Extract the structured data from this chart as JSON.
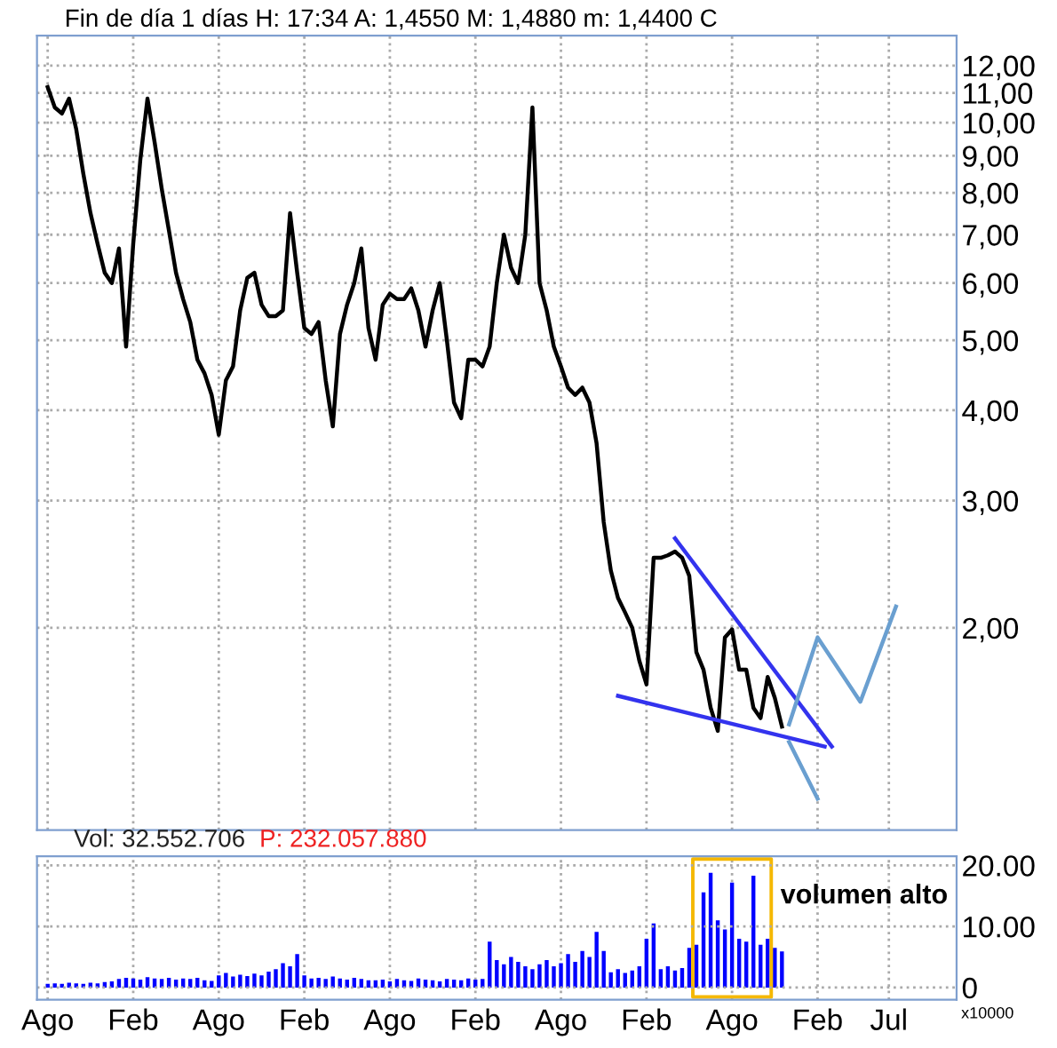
{
  "chart_data": [
    {
      "type": "line",
      "title": "Fin de día 1 días H: 17:34 A: 1,4550 M: 1,4880 m: 1,4400 C",
      "log": "y",
      "grid": true,
      "line_style": "solid",
      "categories": [
        null,
        null,
        null,
        null,
        null,
        null,
        null,
        null,
        null,
        null,
        null,
        null,
        null,
        null,
        null,
        null,
        null,
        null,
        null,
        null,
        null,
        null,
        null,
        null,
        null,
        null,
        null,
        null,
        null,
        null,
        null,
        null,
        null,
        null,
        null,
        null,
        null,
        null,
        null,
        null,
        null,
        null,
        null,
        null,
        null,
        null,
        null,
        null,
        null,
        null,
        null,
        null,
        null,
        null,
        null,
        null,
        null,
        null,
        null,
        null,
        null,
        null,
        null,
        null,
        null,
        null,
        null,
        null,
        null,
        null,
        null,
        null,
        null,
        null,
        null,
        null,
        null,
        null,
        null,
        null,
        null,
        null,
        null,
        null,
        null,
        null,
        null,
        null,
        null,
        null,
        null,
        null,
        null,
        null,
        null,
        null,
        null,
        null,
        null,
        null,
        null,
        null,
        null,
        null,
        null,
        null,
        null,
        null,
        null,
        null,
        null,
        null,
        null,
        null,
        null,
        null,
        null,
        null,
        null,
        null,
        null,
        null,
        null,
        null,
        null,
        null,
        null,
        null
      ],
      "ylim": [
        1.05,
        13.2
      ],
      "yticks": [
        {
          "value": 2,
          "label": "2,00"
        },
        {
          "value": 3,
          "label": "3,00"
        },
        {
          "value": 4,
          "label": "4,00"
        },
        {
          "value": 5,
          "label": "5,00"
        },
        {
          "value": 6,
          "label": "6,00"
        },
        {
          "value": 7,
          "label": "7,00"
        },
        {
          "value": 8,
          "label": "8,00"
        },
        {
          "value": 9,
          "label": "9,00"
        },
        {
          "value": 10,
          "label": "10,00"
        },
        {
          "value": 11,
          "label": "11,00"
        },
        {
          "value": 12,
          "label": "12,00"
        }
      ],
      "series": [
        {
          "color": "#000000",
          "values": [
            11.2,
            10.5,
            10.3,
            10.8,
            9.8,
            8.5,
            7.5,
            6.8,
            6.2,
            6.0,
            6.7,
            4.9,
            6.8,
            8.9,
            10.8,
            9.4,
            8.1,
            7.1,
            6.2,
            5.7,
            5.3,
            4.7,
            4.5,
            4.2,
            3.7,
            4.4,
            4.6,
            5.5,
            6.1,
            6.2,
            5.6,
            5.4,
            5.4,
            5.5,
            7.5,
            6.2,
            5.2,
            5.1,
            5.3,
            4.4,
            3.8,
            5.1,
            5.6,
            6.0,
            6.7,
            5.2,
            4.7,
            5.6,
            5.8,
            5.7,
            5.7,
            5.9,
            5.5,
            4.9,
            5.5,
            6.0,
            5.0,
            4.1,
            3.9,
            4.7,
            4.7,
            4.6,
            4.9,
            6.0,
            7.0,
            6.3,
            6.0,
            7.0,
            10.5,
            6.0,
            5.5,
            4.9,
            4.6,
            4.3,
            4.2,
            4.3,
            4.1,
            3.6,
            2.8,
            2.4,
            2.2,
            2.1,
            2.0,
            1.8,
            1.67,
            2.5,
            2.5,
            2.52,
            2.55,
            2.5,
            2.36,
            1.85,
            1.75,
            1.55,
            1.44,
            1.94,
            1.99,
            1.75,
            1.75,
            1.55,
            1.5,
            1.71,
            1.6,
            1.46,
            null,
            null,
            null,
            null,
            null,
            null,
            null,
            null,
            null,
            null,
            null,
            null,
            null,
            null,
            null,
            null,
            null,
            null,
            null,
            null,
            null,
            null,
            null,
            null
          ]
        },
        {
          "color": "#3333ee",
          "values": [
            null,
            null,
            null,
            null,
            null,
            null,
            null,
            null,
            null,
            null,
            null,
            null,
            null,
            null,
            null,
            null,
            null,
            null,
            null,
            null,
            null,
            null,
            null,
            null,
            null,
            null,
            null,
            null,
            null,
            null,
            null,
            null,
            null,
            null,
            null,
            null,
            null,
            null,
            null,
            null,
            null,
            null,
            null,
            null,
            null,
            null,
            null,
            null,
            null,
            null,
            null,
            null,
            null,
            null,
            null,
            null,
            null,
            null,
            null,
            null,
            null,
            null,
            null,
            null,
            null,
            null,
            null,
            null,
            null,
            null,
            null,
            null,
            null,
            null,
            null,
            null,
            null,
            null,
            null,
            null,
            null,
            null,
            null,
            null,
            null,
            null,
            null,
            null,
            2.66,
            null,
            null,
            null,
            null,
            null,
            null,
            null,
            null,
            null,
            null,
            null,
            null,
            null,
            null,
            null,
            null,
            null,
            null,
            null,
            null,
            null,
            1.37,
            null,
            null,
            null,
            null,
            null,
            null,
            null,
            null,
            null,
            null,
            null,
            null,
            null,
            null,
            null,
            null,
            null
          ]
        },
        {
          "color": "#3333ee",
          "values": [
            null,
            null,
            null,
            null,
            null,
            null,
            null,
            null,
            null,
            null,
            null,
            null,
            null,
            null,
            null,
            null,
            null,
            null,
            null,
            null,
            null,
            null,
            null,
            null,
            null,
            null,
            null,
            null,
            null,
            null,
            null,
            null,
            null,
            null,
            null,
            null,
            null,
            null,
            null,
            null,
            null,
            null,
            null,
            null,
            null,
            null,
            null,
            null,
            null,
            null,
            null,
            null,
            null,
            null,
            null,
            null,
            null,
            null,
            null,
            null,
            null,
            null,
            null,
            null,
            null,
            null,
            null,
            null,
            null,
            null,
            null,
            null,
            null,
            null,
            null,
            null,
            null,
            null,
            null,
            null,
            1.61,
            null,
            null,
            null,
            null,
            null,
            null,
            null,
            null,
            null,
            null,
            null,
            null,
            null,
            null,
            null,
            null,
            null,
            null,
            null,
            null,
            null,
            null,
            null,
            null,
            null,
            null,
            null,
            null,
            1.37,
            null,
            null,
            null,
            null,
            null,
            null,
            null,
            null,
            null,
            null,
            null,
            null,
            null,
            null,
            null,
            null,
            null,
            null
          ]
        },
        {
          "color": "#6a9fd0",
          "values": [
            null,
            null,
            null,
            null,
            null,
            null,
            null,
            null,
            null,
            null,
            null,
            null,
            null,
            null,
            null,
            null,
            null,
            null,
            null,
            null,
            null,
            null,
            null,
            null,
            null,
            null,
            null,
            null,
            null,
            null,
            null,
            null,
            null,
            null,
            null,
            null,
            null,
            null,
            null,
            null,
            null,
            null,
            null,
            null,
            null,
            null,
            null,
            null,
            null,
            null,
            null,
            null,
            null,
            null,
            null,
            null,
            null,
            null,
            null,
            null,
            null,
            null,
            null,
            null,
            null,
            null,
            null,
            null,
            null,
            null,
            null,
            null,
            null,
            null,
            null,
            null,
            null,
            null,
            null,
            null,
            null,
            null,
            null,
            null,
            null,
            null,
            null,
            null,
            null,
            null,
            null,
            null,
            null,
            null,
            null,
            null,
            null,
            null,
            null,
            null,
            null,
            null,
            null,
            null,
            1.47,
            null,
            null,
            null,
            1.94,
            null,
            null,
            null,
            null,
            null,
            1.58,
            null,
            null,
            null,
            null,
            2.14,
            null,
            null,
            null,
            null,
            null,
            null,
            null,
            null
          ]
        },
        {
          "color": "#6a9fd0",
          "values": [
            null,
            null,
            null,
            null,
            null,
            null,
            null,
            null,
            null,
            null,
            null,
            null,
            null,
            null,
            null,
            null,
            null,
            null,
            null,
            null,
            null,
            null,
            null,
            null,
            null,
            null,
            null,
            null,
            null,
            null,
            null,
            null,
            null,
            null,
            null,
            null,
            null,
            null,
            null,
            null,
            null,
            null,
            null,
            null,
            null,
            null,
            null,
            null,
            null,
            null,
            null,
            null,
            null,
            null,
            null,
            null,
            null,
            null,
            null,
            null,
            null,
            null,
            null,
            null,
            null,
            null,
            null,
            null,
            null,
            null,
            null,
            null,
            null,
            null,
            null,
            null,
            null,
            null,
            null,
            null,
            null,
            null,
            null,
            null,
            null,
            null,
            null,
            null,
            null,
            null,
            null,
            null,
            null,
            null,
            null,
            null,
            null,
            null,
            null,
            null,
            null,
            null,
            null,
            null,
            1.39,
            null,
            null,
            null,
            1.16,
            null,
            null,
            null,
            null,
            null,
            null,
            null,
            null,
            null,
            null,
            null,
            null,
            null,
            null,
            null,
            null,
            null,
            null,
            null
          ]
        }
      ]
    },
    {
      "type": "bar",
      "grid": true,
      "color": "#0000ff",
      "annotations": [
        "Vol: 32.552.706",
        "P: 232.057.880",
        "volumen alto",
        "x10000"
      ],
      "categories": [
        "Ago",
        null,
        null,
        null,
        null,
        null,
        null,
        null,
        null,
        null,
        null,
        null,
        "Feb",
        null,
        null,
        null,
        null,
        null,
        null,
        null,
        null,
        null,
        null,
        null,
        "Ago",
        null,
        null,
        null,
        null,
        null,
        null,
        null,
        null,
        null,
        null,
        null,
        "Feb",
        null,
        null,
        null,
        null,
        null,
        null,
        null,
        null,
        null,
        null,
        null,
        "Ago",
        null,
        null,
        null,
        null,
        null,
        null,
        null,
        null,
        null,
        null,
        null,
        "Feb",
        null,
        null,
        null,
        null,
        null,
        null,
        null,
        null,
        null,
        null,
        null,
        "Ago",
        null,
        null,
        null,
        null,
        null,
        null,
        null,
        null,
        null,
        null,
        null,
        "Feb",
        null,
        null,
        null,
        null,
        null,
        null,
        null,
        null,
        null,
        null,
        null,
        "Ago",
        null,
        null,
        null,
        null,
        null,
        null,
        null,
        null,
        null,
        null,
        null,
        "Feb",
        null,
        null,
        null,
        null,
        null,
        null,
        null,
        null,
        null,
        "Jul",
        null,
        null,
        null,
        null,
        null,
        null,
        null,
        null,
        null
      ],
      "ylim": [
        -2,
        21.5
      ],
      "yticks": [
        {
          "value": 0,
          "label": "0"
        },
        {
          "value": 10,
          "label": "10.00"
        },
        {
          "value": 20,
          "label": "20.00"
        }
      ],
      "values": [
        0.6,
        0.7,
        0.6,
        0.8,
        0.7,
        0.6,
        0.8,
        0.7,
        0.9,
        1.0,
        1.4,
        1.6,
        1.5,
        1.3,
        1.7,
        1.5,
        1.4,
        1.6,
        1.3,
        1.5,
        1.4,
        1.6,
        1.2,
        1.1,
        2.0,
        2.4,
        1.8,
        2.1,
        1.9,
        2.3,
        2.0,
        2.6,
        3.0,
        4.0,
        3.5,
        5.5,
        2.0,
        1.5,
        1.6,
        1.4,
        1.8,
        1.5,
        1.3,
        1.6,
        1.4,
        1.2,
        1.2,
        1.3,
        1.0,
        1.4,
        1.2,
        1.1,
        1.5,
        1.3,
        1.2,
        1.0,
        1.4,
        1.3,
        1.2,
        1.5,
        1.3,
        1.4,
        7.5,
        4.5,
        3.8,
        5.0,
        4.2,
        3.5,
        3.0,
        3.8,
        4.5,
        3.5,
        4.0,
        5.5,
        4.2,
        6.0,
        5.0,
        9.1,
        6.0,
        2.5,
        3.0,
        2.4,
        2.8,
        3.5,
        8.0,
        10.5,
        3.0,
        3.5,
        2.8,
        3.2,
        6.5,
        7.0,
        15.6,
        18.8,
        11.0,
        9.5,
        17.2,
        8.0,
        7.5,
        18.3,
        7.0,
        8.0,
        6.5,
        5.9,
        null,
        null,
        null,
        null,
        null,
        null,
        null,
        null,
        null,
        null,
        null,
        null,
        null,
        null,
        null,
        null,
        null,
        null,
        null,
        null,
        null,
        null,
        null,
        null
      ]
    }
  ]
}
